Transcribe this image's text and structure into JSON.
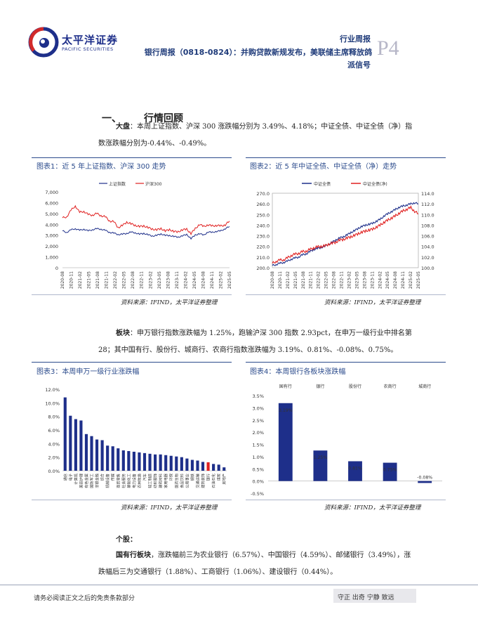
{
  "header": {
    "logo_cn": "太平洋证券",
    "logo_en": "PACIFIC SECURITIES",
    "category": "行业周报",
    "title_line1": "银行周报（0818-0824）：并购贷款新规发布，美联储主席释放鸽",
    "title_line2": "派信号",
    "page": "P4"
  },
  "section": {
    "number": "一、",
    "title": "行情回顾"
  },
  "paragraph1": {
    "bold": "大盘",
    "text": "：本周上证指数、沪深 300 涨跌幅分别为 3.49%、4.18%；中证全债、中证全债（净）指",
    "text2": "数涨跌幅分别为-0.44%、-0.49%。"
  },
  "paragraph2": {
    "bold": "板块",
    "text": "：申万银行指数涨跌幅为 1.25%，跑输沪深 300 指数 2.93pct，在申万一级行业中排名第",
    "text2": "28；其中国有行、股份行、城商行、农商行指数涨跌幅为 3.19%、0.81%、-0.08%、0.75%。"
  },
  "paragraph3": {
    "heading": "个股：",
    "bold": "国有行板块",
    "text": "，涨跌幅前三为农业银行（6.57%）、中国银行（4.59%）、邮储银行（3.49%），涨",
    "text2": "跌幅后三为交通银行（1.88%）、工商银行（1.06%）、建设银行（0.44%）。"
  },
  "source_text": "资料来源：IFIND，太平洋证券整理",
  "footer": {
    "left": "请务必阅读正文之后的免责条款部分",
    "right": "守正 出奇 宁静 致远"
  },
  "colors": {
    "navy": "#1e2f8a",
    "red": "#e02020",
    "accent": "#2b4b8c"
  },
  "chart_data": [
    {
      "type": "line",
      "caption": "图表1：近 5 年上证指数、沪深 300 走势",
      "series": [
        {
          "name": "上证指数",
          "color": "#1e2f8a",
          "values": [
            3400,
            3250,
            3500,
            3600,
            3450,
            3550,
            3400,
            3500,
            3600,
            3550,
            3450,
            3250,
            3200,
            3050,
            3100,
            3150,
            3300,
            3200,
            3100,
            3150,
            3050,
            2900,
            3000,
            3100,
            3000,
            2950,
            2900,
            2800,
            2950,
            3050,
            2700,
            3000,
            3150,
            3000,
            3300,
            3250,
            3350,
            3400,
            3600,
            3800
          ]
        },
        {
          "name": "沪深300",
          "color": "#e02020",
          "values": [
            4600,
            4700,
            5300,
            5700,
            5100,
            5200,
            4900,
            4850,
            5000,
            4800,
            4700,
            4300,
            4250,
            3700,
            3900,
            4200,
            4050,
            3900,
            3800,
            3850,
            3700,
            3550,
            3500,
            3600,
            3400,
            3500,
            3350,
            3300,
            3500,
            3550,
            3150,
            3600,
            4000,
            3800,
            3950,
            3850,
            3900,
            3850,
            3950,
            4300
          ]
        }
      ],
      "ylim": [
        0,
        7000
      ],
      "yticks": [
        "7,000",
        "6,000",
        "5,000",
        "4,000",
        "3,000",
        "2,000",
        "1,000",
        "0"
      ],
      "xticks": [
        "2020-08",
        "2020-11",
        "2021-02",
        "2021-05",
        "2021-08",
        "2021-11",
        "2022-02",
        "2022-05",
        "2022-08",
        "2022-11",
        "2023-02",
        "2023-05",
        "2023-08",
        "2023-11",
        "2024-02",
        "2024-05",
        "2024-08",
        "2024-11",
        "2025-02",
        "2025-05"
      ]
    },
    {
      "type": "line",
      "caption": "图表2：近 5 年中证全债、中证全债（净）走势",
      "series": [
        {
          "name": "中证全债",
          "color": "#1e2f8a",
          "axis": "left",
          "values": [
            202,
            203,
            204,
            205,
            206,
            208,
            209,
            210,
            212,
            213,
            215,
            217,
            218,
            219,
            220,
            222,
            224,
            226,
            228,
            229,
            231,
            233,
            235,
            237,
            239,
            240,
            241,
            242,
            244,
            246,
            249,
            251,
            253,
            255,
            257,
            258,
            259,
            260,
            261,
            260
          ]
        },
        {
          "name": "中证全债(净)",
          "color": "#e02020",
          "axis": "right",
          "values": [
            100.8,
            101.2,
            101.4,
            101.5,
            101.8,
            102.3,
            102.5,
            102.7,
            103.0,
            103.1,
            103.4,
            103.7,
            103.9,
            104.0,
            104.1,
            104.4,
            104.6,
            104.8,
            105.2,
            105.3,
            105.6,
            105.8,
            106.1,
            106.4,
            106.7,
            106.9,
            107.1,
            107.3,
            107.7,
            108.1,
            108.6,
            109.0,
            109.4,
            109.8,
            110.3,
            110.7,
            111.0,
            111.3,
            110.6,
            110.1
          ]
        }
      ],
      "ylim_left": [
        200,
        270
      ],
      "ylim_right": [
        100,
        114
      ],
      "yticks_left": [
        "270.0",
        "260.0",
        "250.0",
        "240.0",
        "230.0",
        "220.0",
        "210.0",
        "200.0"
      ],
      "yticks_right": [
        "114.0",
        "112.0",
        "110.0",
        "108.0",
        "106.0",
        "104.0",
        "102.0",
        "100.0"
      ],
      "xticks": [
        "2020-08",
        "2020-11",
        "2021-02",
        "2021-05",
        "2021-08",
        "2021-11",
        "2022-02",
        "2022-05",
        "2022-08",
        "2022-11",
        "2023-02",
        "2023-05",
        "2023-08",
        "2023-11",
        "2024-02",
        "2024-05",
        "2024-08",
        "2024-11",
        "2025-02",
        "2025-05"
      ]
    },
    {
      "type": "bar",
      "caption": "图表3：本周申万一级行业涨跌幅",
      "categories": [
        "通信",
        "电子",
        "计算机",
        "美容护理",
        "有色金属",
        "国防军工",
        "非银金融",
        "综合",
        "机械设备",
        "传媒",
        "商贸零售",
        "社会服务",
        "基础化工",
        "电力设备",
        "农林牧渔",
        "汽车",
        "轻工制造",
        "纺织服饰",
        "建筑材料",
        "家用电器",
        "环保",
        "医药生物",
        "食品饮料",
        "公用事业",
        "钢铁",
        "交通运输",
        "建筑装饰",
        "银行",
        "石油石化",
        "煤炭",
        "房地产"
      ],
      "values": [
        10.8,
        8.1,
        7.6,
        7.4,
        5.4,
        5.1,
        4.6,
        4.5,
        3.7,
        3.6,
        3.3,
        3.0,
        2.9,
        2.8,
        2.7,
        2.6,
        2.5,
        2.4,
        2.4,
        2.3,
        2.2,
        2.1,
        2.0,
        1.8,
        1.6,
        1.5,
        1.3,
        1.25,
        1.0,
        0.9,
        0.5
      ],
      "highlight": "银行",
      "ylim": [
        0,
        12
      ],
      "yticks": [
        "12.0%",
        "10.0%",
        "8.0%",
        "6.0%",
        "4.0%",
        "2.0%",
        "0.0%"
      ]
    },
    {
      "type": "bar",
      "caption": "图表4：本周银行各板块涨跌幅",
      "categories": [
        "国有行",
        "银行",
        "股份行",
        "农商行",
        "城商行"
      ],
      "values": [
        3.19,
        1.25,
        0.81,
        0.75,
        -0.08
      ],
      "labels": [
        "3.19%",
        "1.25%",
        "0.81%",
        "0.75%",
        "-0.08%"
      ],
      "ylim": [
        -0.5,
        3.5
      ],
      "yticks": [
        "3.5%",
        "3.0%",
        "2.5%",
        "2.0%",
        "1.5%",
        "1.0%",
        "0.5%",
        "0.0%",
        "-0.5%"
      ]
    }
  ]
}
